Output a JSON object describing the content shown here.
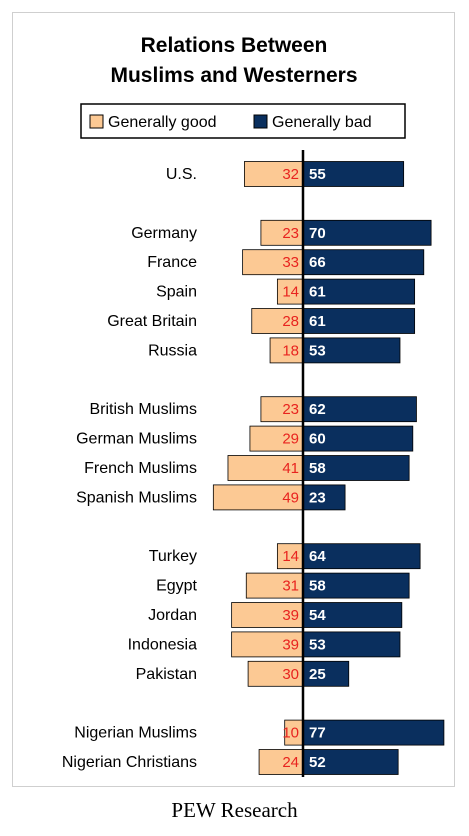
{
  "chart_data": {
    "type": "bar",
    "title_line1": "Relations Between",
    "title_line2": "Muslims and Westerners",
    "categories": [
      "U.S.",
      "Germany",
      "France",
      "Spain",
      "Great Britain",
      "Russia",
      "British Muslims",
      "German Muslims",
      "French Muslims",
      "Spanish Muslims",
      "Turkey",
      "Egypt",
      "Jordan",
      "Indonesia",
      "Pakistan",
      "Nigerian Muslims",
      "Nigerian Christians"
    ],
    "groups": [
      1,
      5,
      4,
      5,
      2
    ],
    "series": [
      {
        "name": "Generally good",
        "values": [
          32,
          23,
          33,
          14,
          28,
          18,
          23,
          29,
          41,
          49,
          14,
          31,
          39,
          39,
          30,
          10,
          24
        ]
      },
      {
        "name": "Generally bad",
        "values": [
          55,
          70,
          66,
          61,
          61,
          53,
          62,
          60,
          58,
          23,
          64,
          58,
          54,
          53,
          25,
          77,
          52
        ]
      }
    ],
    "colors": {
      "good": "#fcc994",
      "bad": "#0a2f5e",
      "good_value": "#e8231f",
      "bad_value": "#ffffff"
    },
    "xlim": [
      -55,
      80
    ],
    "legend_position": "top",
    "grid": false
  },
  "source": "PEW Research"
}
